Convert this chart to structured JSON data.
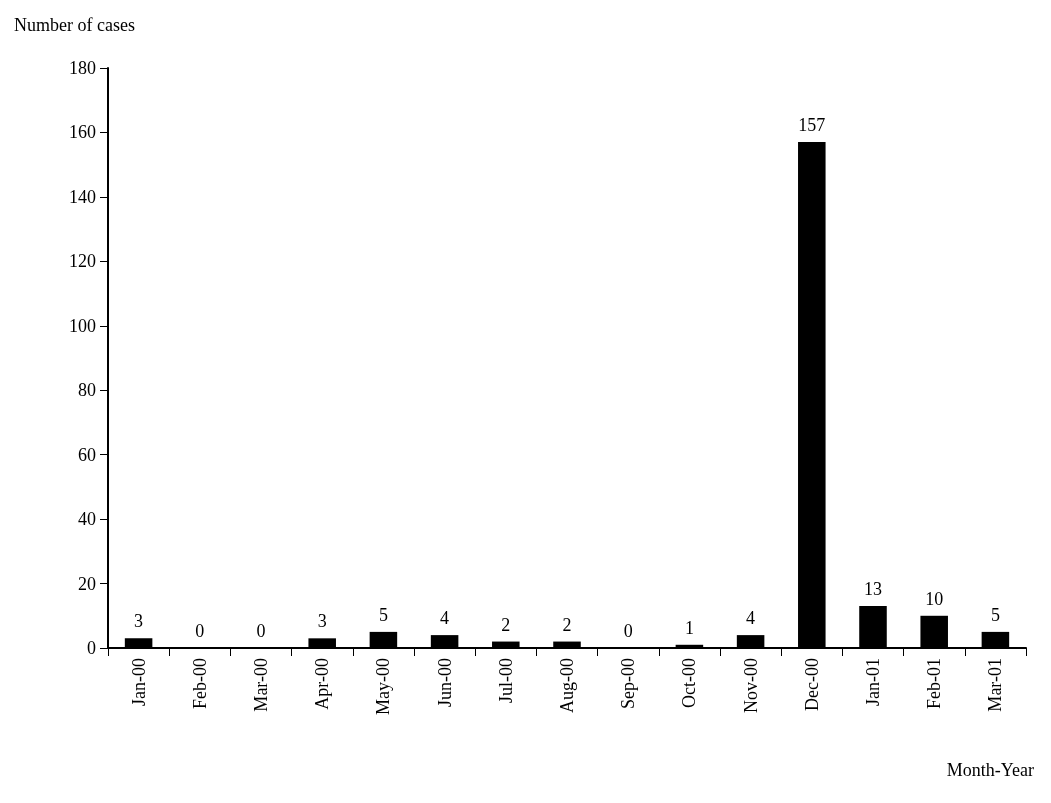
{
  "chart_data": {
    "type": "bar",
    "xlabel": "Month-Year",
    "ylabel": "Number of cases",
    "categories": [
      "Jan-00",
      "Feb-00",
      "Mar-00",
      "Apr-00",
      "May-00",
      "Jun-00",
      "Jul-00",
      "Aug-00",
      "Sep-00",
      "Oct-00",
      "Nov-00",
      "Dec-00",
      "Jan-01",
      "Feb-01",
      "Mar-01"
    ],
    "values": [
      3,
      0,
      0,
      3,
      5,
      4,
      2,
      2,
      0,
      1,
      4,
      157,
      13,
      10,
      5
    ],
    "color": "#000000",
    "ylim": [
      0,
      180
    ],
    "yticks": [
      0,
      20,
      40,
      60,
      80,
      100,
      120,
      140,
      160,
      180
    ],
    "data_labels": true
  }
}
